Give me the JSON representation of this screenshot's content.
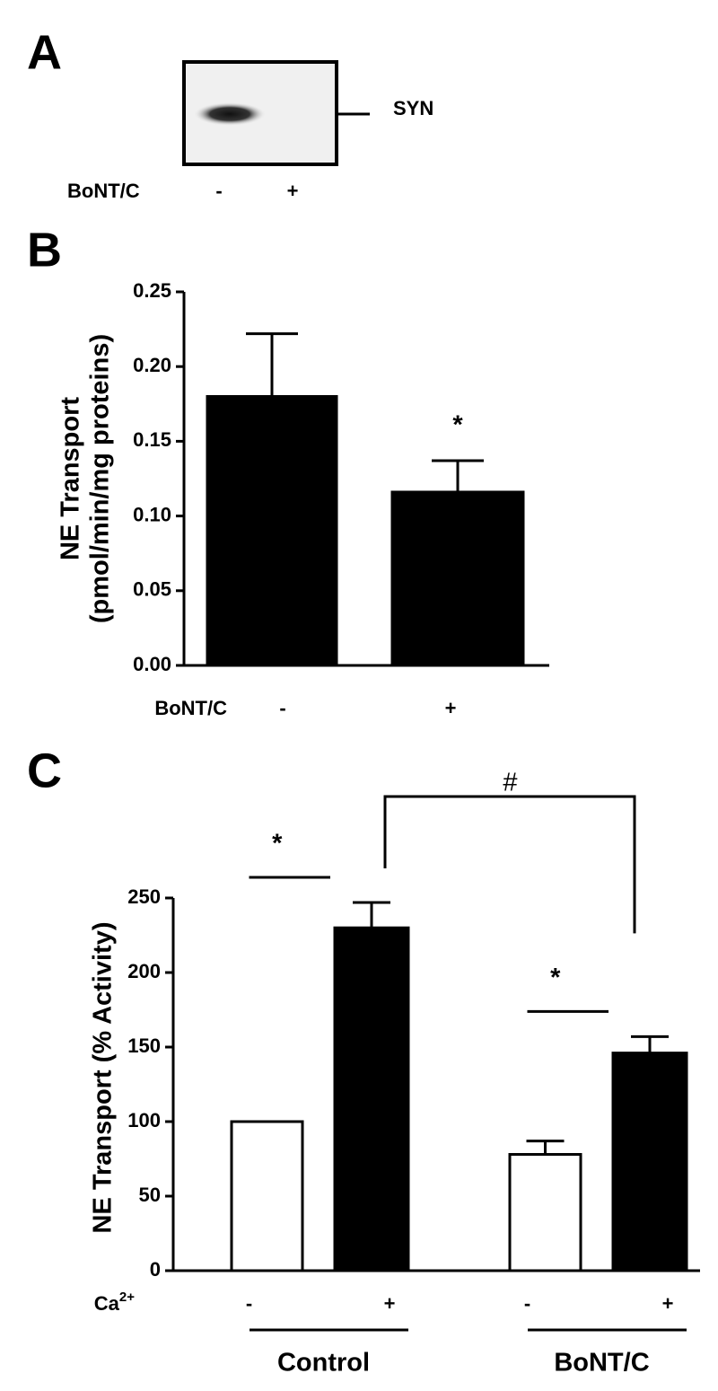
{
  "panel_a": {
    "label": "A",
    "band_label": "SYN",
    "treatment_label": "BoNT/C",
    "lanes": [
      "-",
      "+"
    ]
  },
  "chart_data": [
    {
      "type": "bar",
      "panel_label": "B",
      "ylabel": "NE Transport",
      "ylabel_sub": "(pmol/min/mg proteins)",
      "row_label": "BoNT/C",
      "categories": [
        "-",
        "+"
      ],
      "values": [
        0.18,
        0.116
      ],
      "errors": [
        0.042,
        0.021
      ],
      "colors": [
        "#000000",
        "#000000"
      ],
      "significance": [
        null,
        "*"
      ],
      "ylim": [
        0,
        0.25
      ],
      "yticks": [
        {
          "value": 0,
          "label": "0.00"
        },
        {
          "value": 0.05,
          "label": "0.05"
        },
        {
          "value": 0.1,
          "label": "0.10"
        },
        {
          "value": 0.15,
          "label": "0.15"
        },
        {
          "value": 0.2,
          "label": "0.20"
        },
        {
          "value": 0.25,
          "label": "0.25"
        }
      ]
    },
    {
      "type": "bar",
      "panel_label": "C",
      "ylabel": "NE Transport (% Activity)",
      "row_label": "Ca",
      "row_label_sup": "2+",
      "categories": [
        "-",
        "+",
        "-",
        "+"
      ],
      "values": [
        100,
        230,
        78,
        146
      ],
      "errors": [
        null,
        17,
        9,
        11
      ],
      "colors": [
        "#ffffff",
        "#000000",
        "#ffffff",
        "#000000"
      ],
      "groups": [
        {
          "name": "Control",
          "members": [
            0,
            1
          ]
        },
        {
          "name": "BoNT/C",
          "members": [
            2,
            3
          ]
        }
      ],
      "comparisons": [
        {
          "text": "*",
          "between": [
            0,
            1
          ]
        },
        {
          "text": "*",
          "between": [
            2,
            3
          ]
        },
        {
          "text": "#",
          "between": [
            1,
            3
          ]
        }
      ],
      "ylim": [
        0,
        250
      ],
      "yticks": [
        0,
        50,
        100,
        150,
        200,
        250
      ]
    }
  ]
}
